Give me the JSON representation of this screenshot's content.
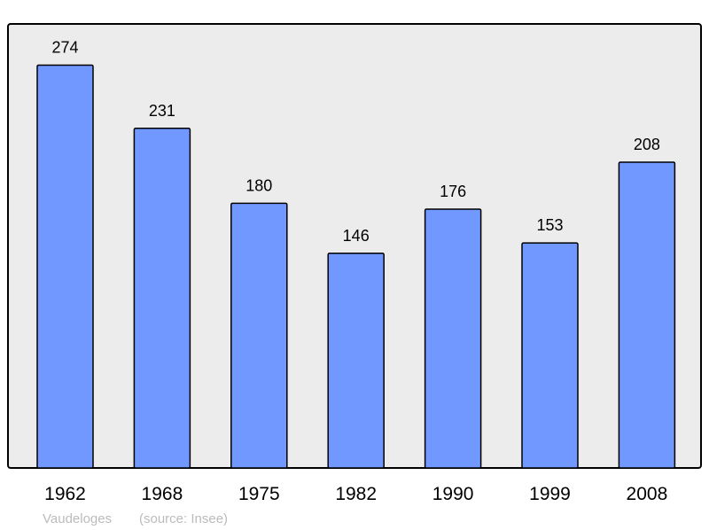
{
  "chart_data": {
    "type": "bar",
    "categories": [
      "1962",
      "1968",
      "1975",
      "1982",
      "1990",
      "1999",
      "2008"
    ],
    "values": [
      274,
      231,
      180,
      146,
      176,
      153,
      208
    ],
    "title": "",
    "xlabel": "",
    "ylabel": "",
    "ylim": [
      0,
      302
    ],
    "grid": false,
    "data_labels": true,
    "colors": {
      "bar": "#7098ff",
      "bar_stroke": "#000000",
      "plot_background": "#ececec",
      "footer_text": "#bbbbbb"
    }
  },
  "footer": {
    "place": "Vaudeloges",
    "source": "(source: Insee)"
  }
}
